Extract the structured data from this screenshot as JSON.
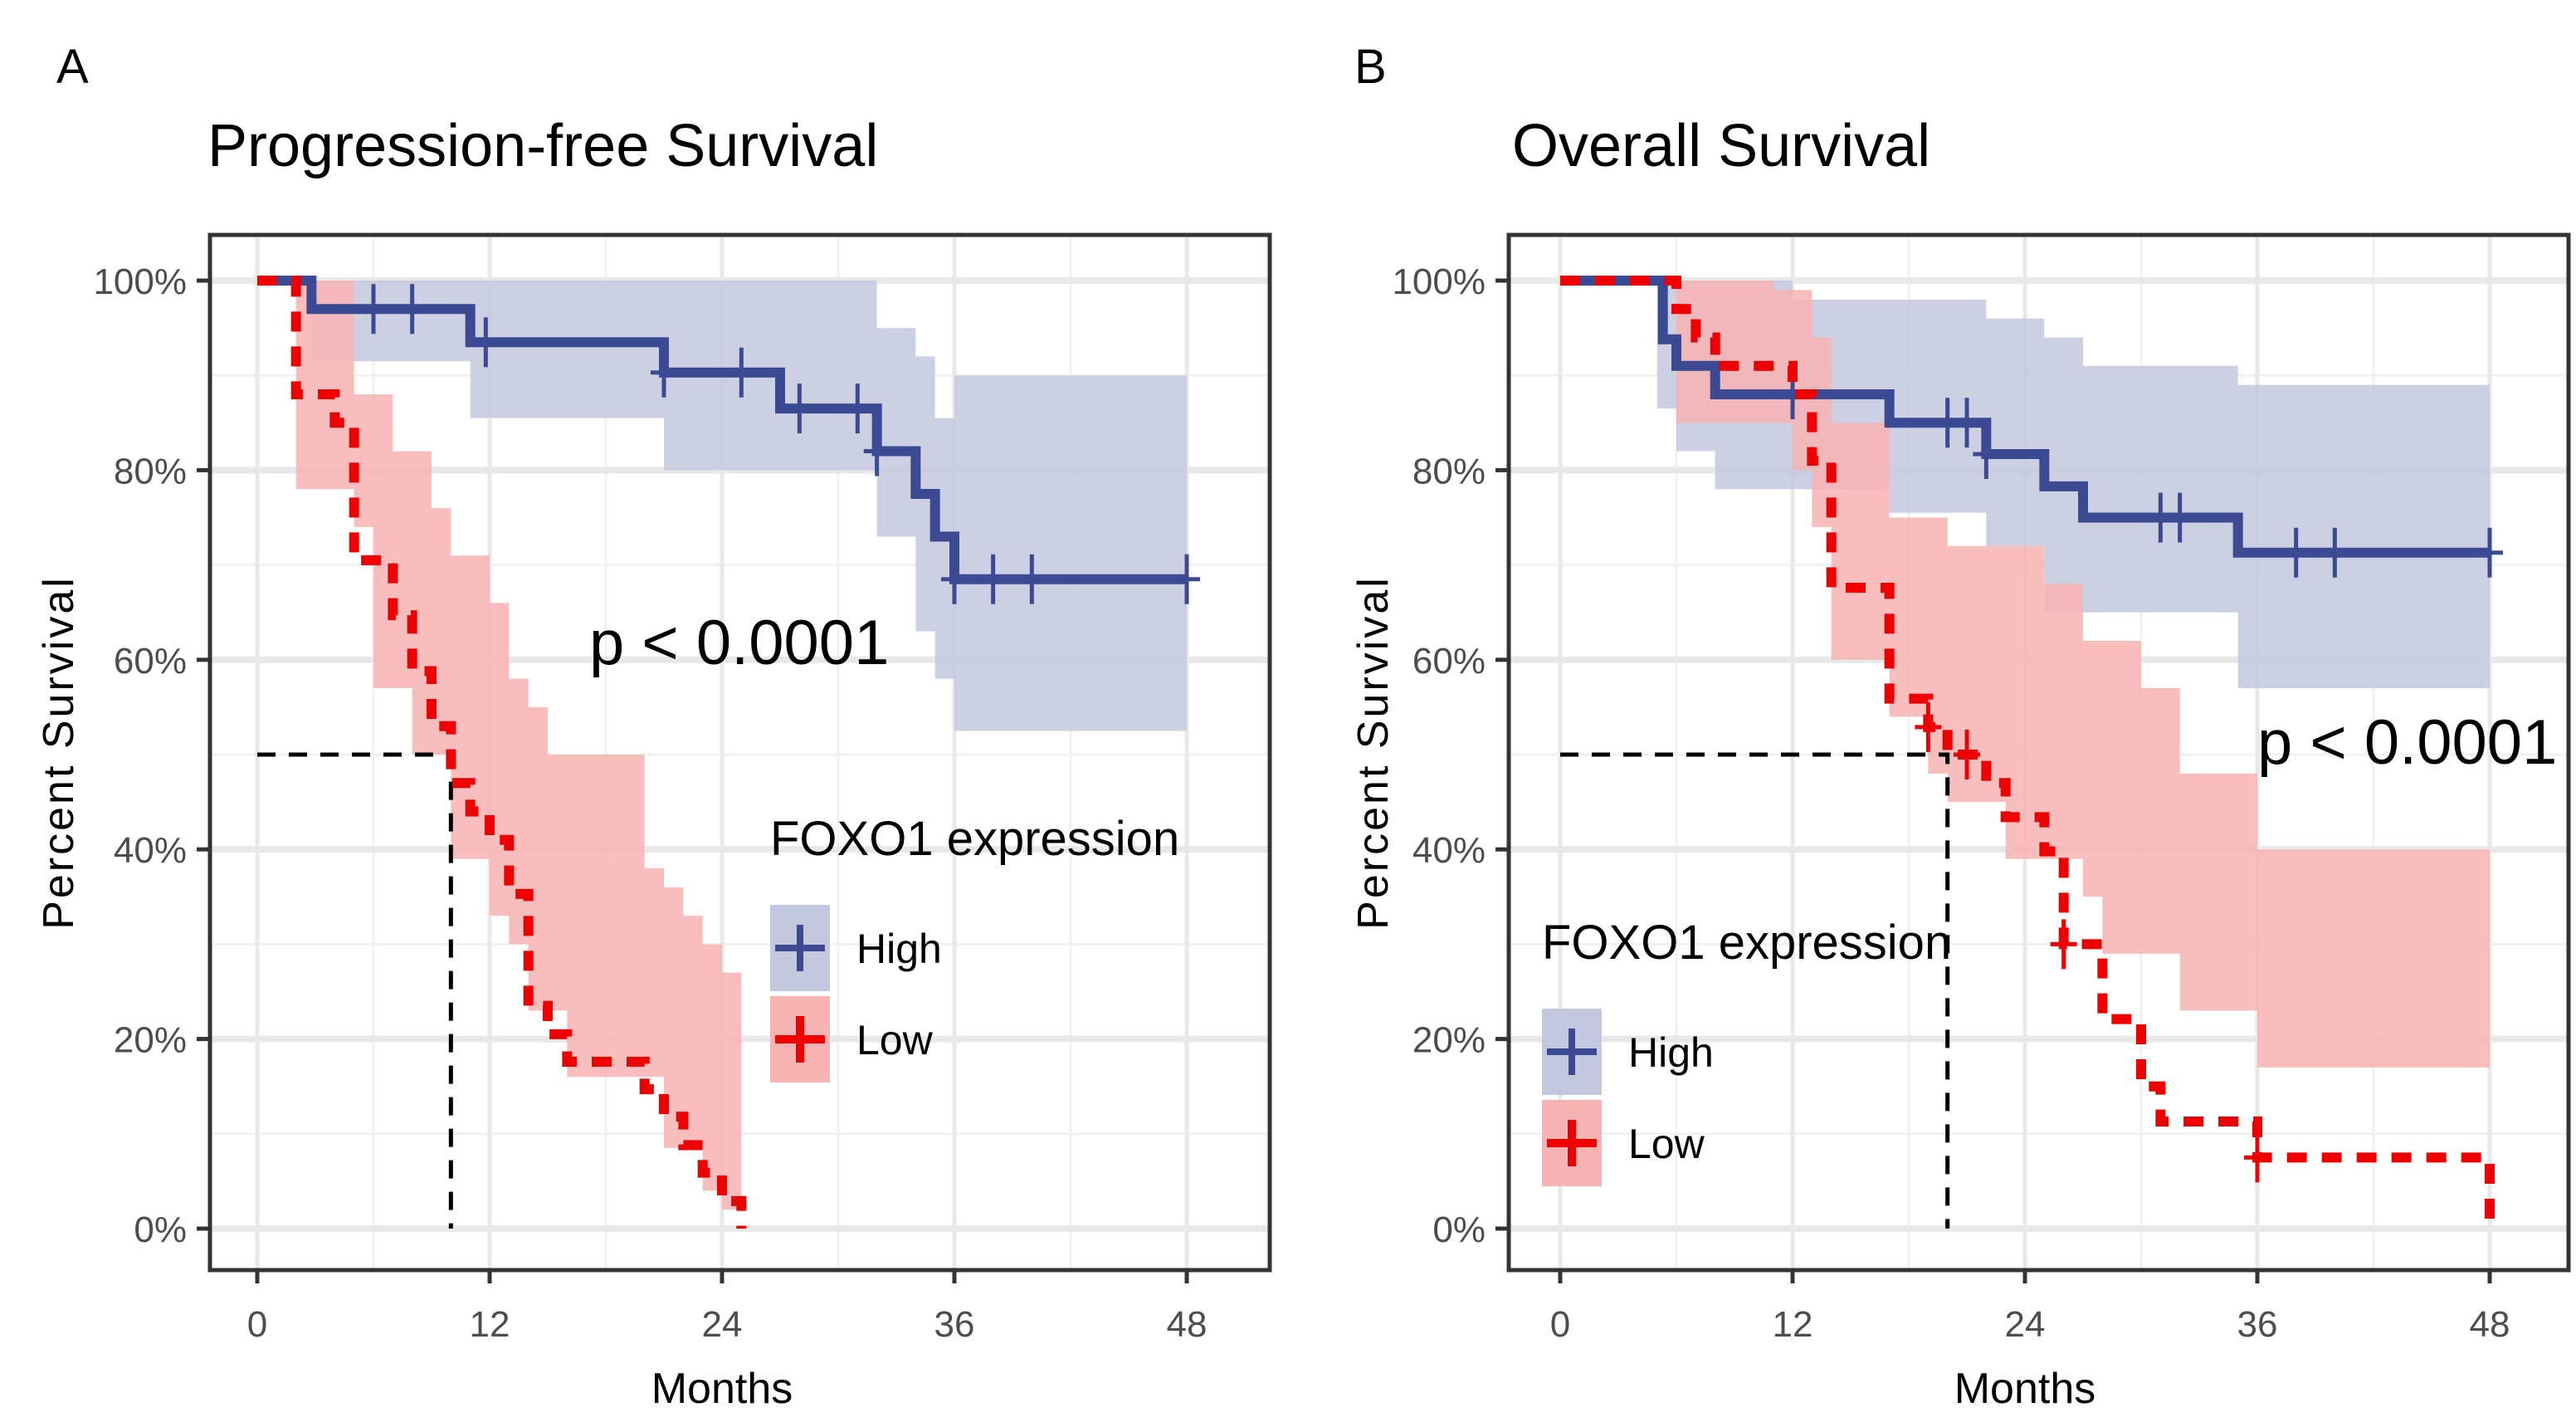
{
  "chart_data": [
    {
      "type": "line",
      "panel_label": "A",
      "title": "Progression-free Survival",
      "xlabel": "Months",
      "ylabel": "Percent Survival",
      "xlim": [
        0,
        48
      ],
      "ylim": [
        0,
        100
      ],
      "xticks": [
        "0",
        "12",
        "24",
        "36",
        "48"
      ],
      "xtick_values": [
        0,
        12,
        24,
        36,
        48
      ],
      "yticks": [
        "0%",
        "20%",
        "40%",
        "60%",
        "80%",
        "100%"
      ],
      "ytick_values": [
        0,
        20,
        40,
        60,
        80,
        100
      ],
      "grid": true,
      "annotation": "p < 0.0001",
      "annotation_pos": {
        "x": 24,
        "y": 60
      },
      "median_line": {
        "x": 10,
        "y": 50
      },
      "legend": {
        "title": "FOXO1 expression",
        "placement": "bottom-right"
      },
      "series": [
        {
          "name": "High",
          "color": "#3b4a93",
          "fill": "#c4c8de",
          "dash": false,
          "steps": [
            [
              0,
              100
            ],
            [
              2.8,
              100
            ],
            [
              2.8,
              97
            ],
            [
              11,
              97
            ],
            [
              11,
              93.5
            ],
            [
              21,
              93.5
            ],
            [
              21,
              90.3
            ],
            [
              27,
              90.3
            ],
            [
              27,
              86.5
            ],
            [
              32,
              86.5
            ],
            [
              32,
              82
            ],
            [
              34,
              82
            ],
            [
              34,
              77.5
            ],
            [
              35,
              77.5
            ],
            [
              35,
              73
            ],
            [
              36,
              73
            ],
            [
              36,
              68.5
            ],
            [
              48,
              68.5
            ]
          ],
          "censors": [
            [
              6,
              97
            ],
            [
              8,
              97
            ],
            [
              11.8,
              93.5
            ],
            [
              21,
              90.3
            ],
            [
              25,
              90.3
            ],
            [
              28,
              86.5
            ],
            [
              31,
              86.5
            ],
            [
              32,
              82
            ],
            [
              36,
              68.5
            ],
            [
              38,
              68.5
            ],
            [
              40,
              68.5
            ],
            [
              48,
              68.5
            ]
          ],
          "ci": [
            [
              2.8,
              100,
              91.5
            ],
            [
              11,
              100,
              85.5
            ],
            [
              21,
              100,
              80
            ],
            [
              27,
              100,
              80
            ],
            [
              32,
              95,
              73
            ],
            [
              34,
              92,
              63
            ],
            [
              35,
              85.5,
              58
            ],
            [
              36,
              90,
              52.5
            ],
            [
              48,
              90,
              52.5
            ]
          ]
        },
        {
          "name": "Low",
          "color": "#ee0000",
          "fill": "#f7b3b3",
          "dash": true,
          "steps": [
            [
              0,
              100
            ],
            [
              2,
              100
            ],
            [
              2,
              88
            ],
            [
              4,
              88
            ],
            [
              4,
              85
            ],
            [
              5,
              85
            ],
            [
              5,
              70.5
            ],
            [
              7,
              70.5
            ],
            [
              7,
              64.7
            ],
            [
              8,
              64.7
            ],
            [
              8,
              58.8
            ],
            [
              9,
              58.8
            ],
            [
              9,
              53
            ],
            [
              10,
              53
            ],
            [
              10,
              47
            ],
            [
              11,
              47
            ],
            [
              11,
              44
            ],
            [
              12,
              44
            ],
            [
              12,
              41
            ],
            [
              13,
              41
            ],
            [
              13,
              35.3
            ],
            [
              14,
              35.3
            ],
            [
              14,
              23.5
            ],
            [
              15,
              23.5
            ],
            [
              15,
              20.5
            ],
            [
              16,
              20.5
            ],
            [
              16,
              17.6
            ],
            [
              20,
              17.6
            ],
            [
              20,
              14.7
            ],
            [
              21,
              14.7
            ],
            [
              21,
              11.8
            ],
            [
              22,
              11.8
            ],
            [
              22,
              8.8
            ],
            [
              23,
              8.8
            ],
            [
              23,
              5.9
            ],
            [
              24,
              5.9
            ],
            [
              24,
              2.9
            ],
            [
              25,
              2.9
            ],
            [
              25,
              0
            ]
          ],
          "censors": [],
          "ci": [
            [
              2,
              100,
              78
            ],
            [
              3,
              100,
              78
            ],
            [
              5,
              88,
              74
            ],
            [
              6,
              88,
              57
            ],
            [
              7,
              82,
              57
            ],
            [
              8,
              82,
              50
            ],
            [
              9,
              76,
              50
            ],
            [
              10,
              71,
              39
            ],
            [
              12,
              66,
              33
            ],
            [
              13,
              58,
              30
            ],
            [
              14,
              55,
              23
            ],
            [
              15,
              50,
              23
            ],
            [
              16,
              50,
              16
            ],
            [
              20,
              38,
              16
            ],
            [
              21,
              36,
              8.5
            ],
            [
              22,
              33,
              8.5
            ],
            [
              23,
              30,
              4
            ],
            [
              24,
              27,
              2
            ],
            [
              25,
              27,
              0
            ]
          ]
        }
      ]
    },
    {
      "type": "line",
      "panel_label": "B",
      "title": "Overall Survival",
      "xlabel": "Months",
      "ylabel": "Percent Survival",
      "xlim": [
        0,
        48
      ],
      "ylim": [
        0,
        100
      ],
      "xticks": [
        "0",
        "12",
        "24",
        "36",
        "48"
      ],
      "xtick_values": [
        0,
        12,
        24,
        36,
        48
      ],
      "yticks": [
        "0%",
        "20%",
        "40%",
        "60%",
        "80%",
        "100%"
      ],
      "ytick_values": [
        0,
        20,
        40,
        60,
        80,
        100
      ],
      "grid": true,
      "annotation": "p < 0.0001",
      "annotation_pos": {
        "x": 43,
        "y": 48
      },
      "median_line": {
        "x": 20,
        "y": 50
      },
      "legend": {
        "title": "FOXO1 expression",
        "placement": "bottom-left"
      },
      "series": [
        {
          "name": "High",
          "color": "#3b4a93",
          "fill": "#c4c8de",
          "dash": false,
          "steps": [
            [
              0,
              100
            ],
            [
              5.3,
              100
            ],
            [
              5.3,
              93.8
            ],
            [
              6,
              93.8
            ],
            [
              6,
              91
            ],
            [
              8,
              91
            ],
            [
              8,
              88
            ],
            [
              17,
              88
            ],
            [
              17,
              85
            ],
            [
              22,
              85
            ],
            [
              22,
              81.7
            ],
            [
              25,
              81.7
            ],
            [
              25,
              78.3
            ],
            [
              27,
              78.3
            ],
            [
              27,
              75
            ],
            [
              35,
              75
            ],
            [
              35,
              71.3
            ],
            [
              48,
              71.3
            ]
          ],
          "censors": [
            [
              12,
              88
            ],
            [
              20,
              85
            ],
            [
              21,
              85
            ],
            [
              22,
              81.7
            ],
            [
              31,
              75
            ],
            [
              32,
              75
            ],
            [
              38,
              71.3
            ],
            [
              40,
              71.3
            ],
            [
              48,
              71.3
            ]
          ],
          "ci": [
            [
              5,
              100,
              86.5
            ],
            [
              6,
              100,
              82
            ],
            [
              8,
              100,
              78
            ],
            [
              12,
              98,
              78
            ],
            [
              17,
              98,
              75.5
            ],
            [
              22,
              96,
              72
            ],
            [
              25,
              94,
              65
            ],
            [
              27,
              91,
              65
            ],
            [
              35,
              89,
              57
            ],
            [
              48,
              89,
              57
            ]
          ]
        },
        {
          "name": "Low",
          "color": "#ee0000",
          "fill": "#f7b3b3",
          "dash": true,
          "steps": [
            [
              0,
              100
            ],
            [
              6,
              100
            ],
            [
              6,
              97
            ],
            [
              7,
              97
            ],
            [
              7,
              94
            ],
            [
              8,
              94
            ],
            [
              8,
              91
            ],
            [
              12,
              91
            ],
            [
              12,
              88
            ],
            [
              13,
              88
            ],
            [
              13,
              81
            ],
            [
              14,
              81
            ],
            [
              14,
              67.6
            ],
            [
              17,
              67.6
            ],
            [
              17,
              55.9
            ],
            [
              19,
              55.9
            ],
            [
              19,
              52.9
            ],
            [
              20,
              52.9
            ],
            [
              20,
              50
            ],
            [
              22,
              50
            ],
            [
              22,
              47
            ],
            [
              23,
              47
            ],
            [
              23,
              43.4
            ],
            [
              25,
              43.4
            ],
            [
              25,
              39.8
            ],
            [
              26,
              39.8
            ],
            [
              26,
              30
            ],
            [
              28,
              30
            ],
            [
              28,
              22.1
            ],
            [
              30,
              22.1
            ],
            [
              30,
              15
            ],
            [
              31,
              15
            ],
            [
              31,
              11.3
            ],
            [
              36,
              11.3
            ],
            [
              36,
              7.5
            ],
            [
              48,
              7.5
            ],
            [
              48,
              0
            ]
          ],
          "censors": [
            [
              19,
              52.9
            ],
            [
              21,
              50
            ],
            [
              26,
              30
            ],
            [
              36,
              7.5
            ]
          ],
          "ci": [
            [
              6,
              100,
              85
            ],
            [
              8,
              100,
              85
            ],
            [
              11,
              99,
              85
            ],
            [
              12,
              99,
              80
            ],
            [
              13,
              94,
              74
            ],
            [
              14,
              85,
              60
            ],
            [
              17,
              75,
              54
            ],
            [
              18,
              75,
              54
            ],
            [
              19,
              75,
              48
            ],
            [
              20,
              72,
              45
            ],
            [
              21,
              72,
              45
            ],
            [
              23,
              72,
              39
            ],
            [
              25,
              68,
              39
            ],
            [
              27,
              62,
              35
            ],
            [
              28,
              62,
              29
            ],
            [
              30,
              57,
              29
            ],
            [
              32,
              48,
              23
            ],
            [
              36,
              40,
              17
            ],
            [
              48,
              28,
              2.5
            ]
          ]
        }
      ]
    }
  ]
}
